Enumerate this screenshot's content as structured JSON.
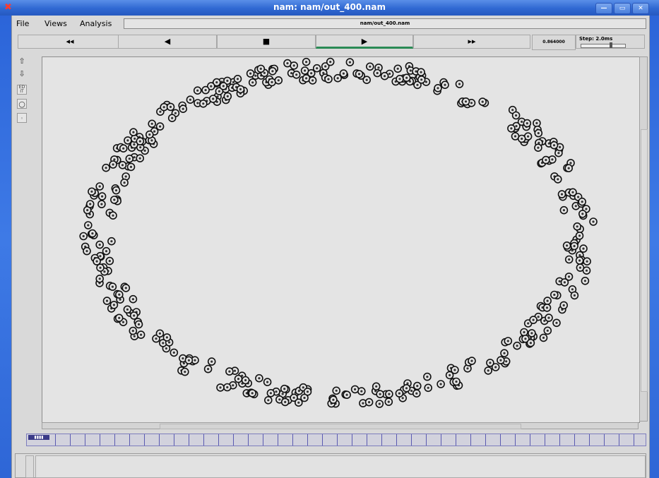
{
  "window": {
    "title": "nam: nam/out_400.nam",
    "file_display": "nam/out_400.nam"
  },
  "menu": {
    "file": "File",
    "views": "Views",
    "analysis": "Analysis"
  },
  "controls": {
    "rewind": "◂◂",
    "back": "◀",
    "stop": "■",
    "play": "▶",
    "fast_forward": "▸▸",
    "time": "0.864000",
    "step": "Step: 2.0ms"
  },
  "icons": {
    "zoom_in": "zoom-in-icon",
    "zoom_out": "zoom-out-icon",
    "edit": "edit-icon",
    "node": "node-icon",
    "small_node": "small-node-icon"
  },
  "timeline": {
    "badge": "▮▮▮▮"
  },
  "topology": {
    "node_count": 400
  }
}
